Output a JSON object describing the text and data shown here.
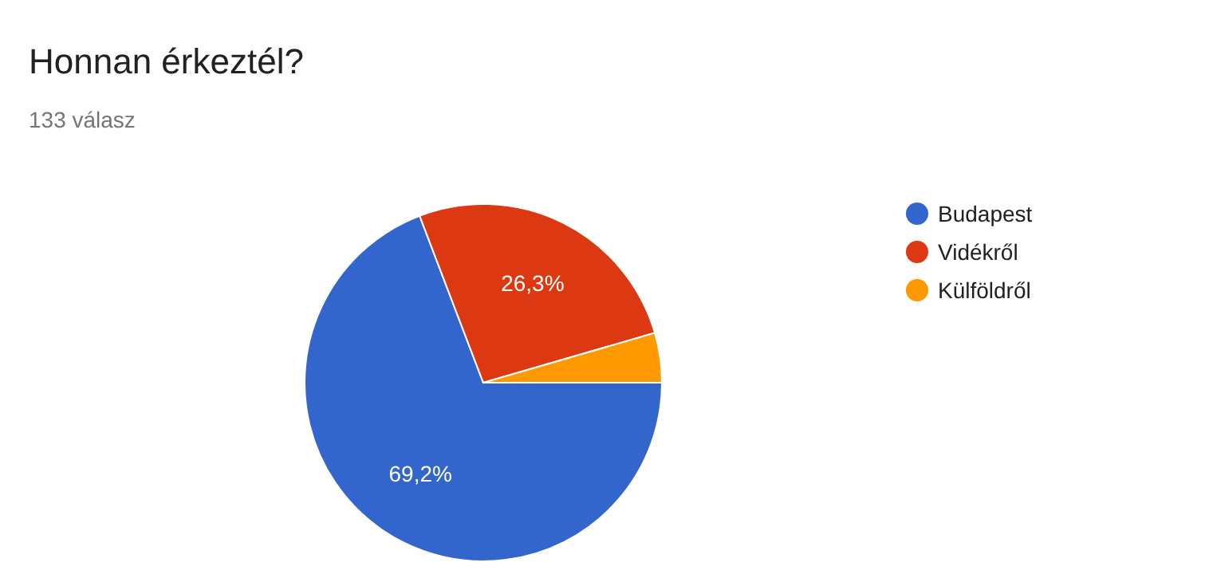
{
  "chart_data": {
    "type": "pie",
    "title": "Honnan érkeztél?",
    "subtitle": "133 válasz",
    "categories": [
      "Budapest",
      "Vidékről",
      "Külföldről"
    ],
    "values": [
      69.2,
      26.3,
      4.5
    ],
    "colors": [
      "#3366cc",
      "#dc3912",
      "#ff9900"
    ],
    "value_labels": [
      "69,2%",
      "26,3%",
      null
    ],
    "legend": "right"
  }
}
